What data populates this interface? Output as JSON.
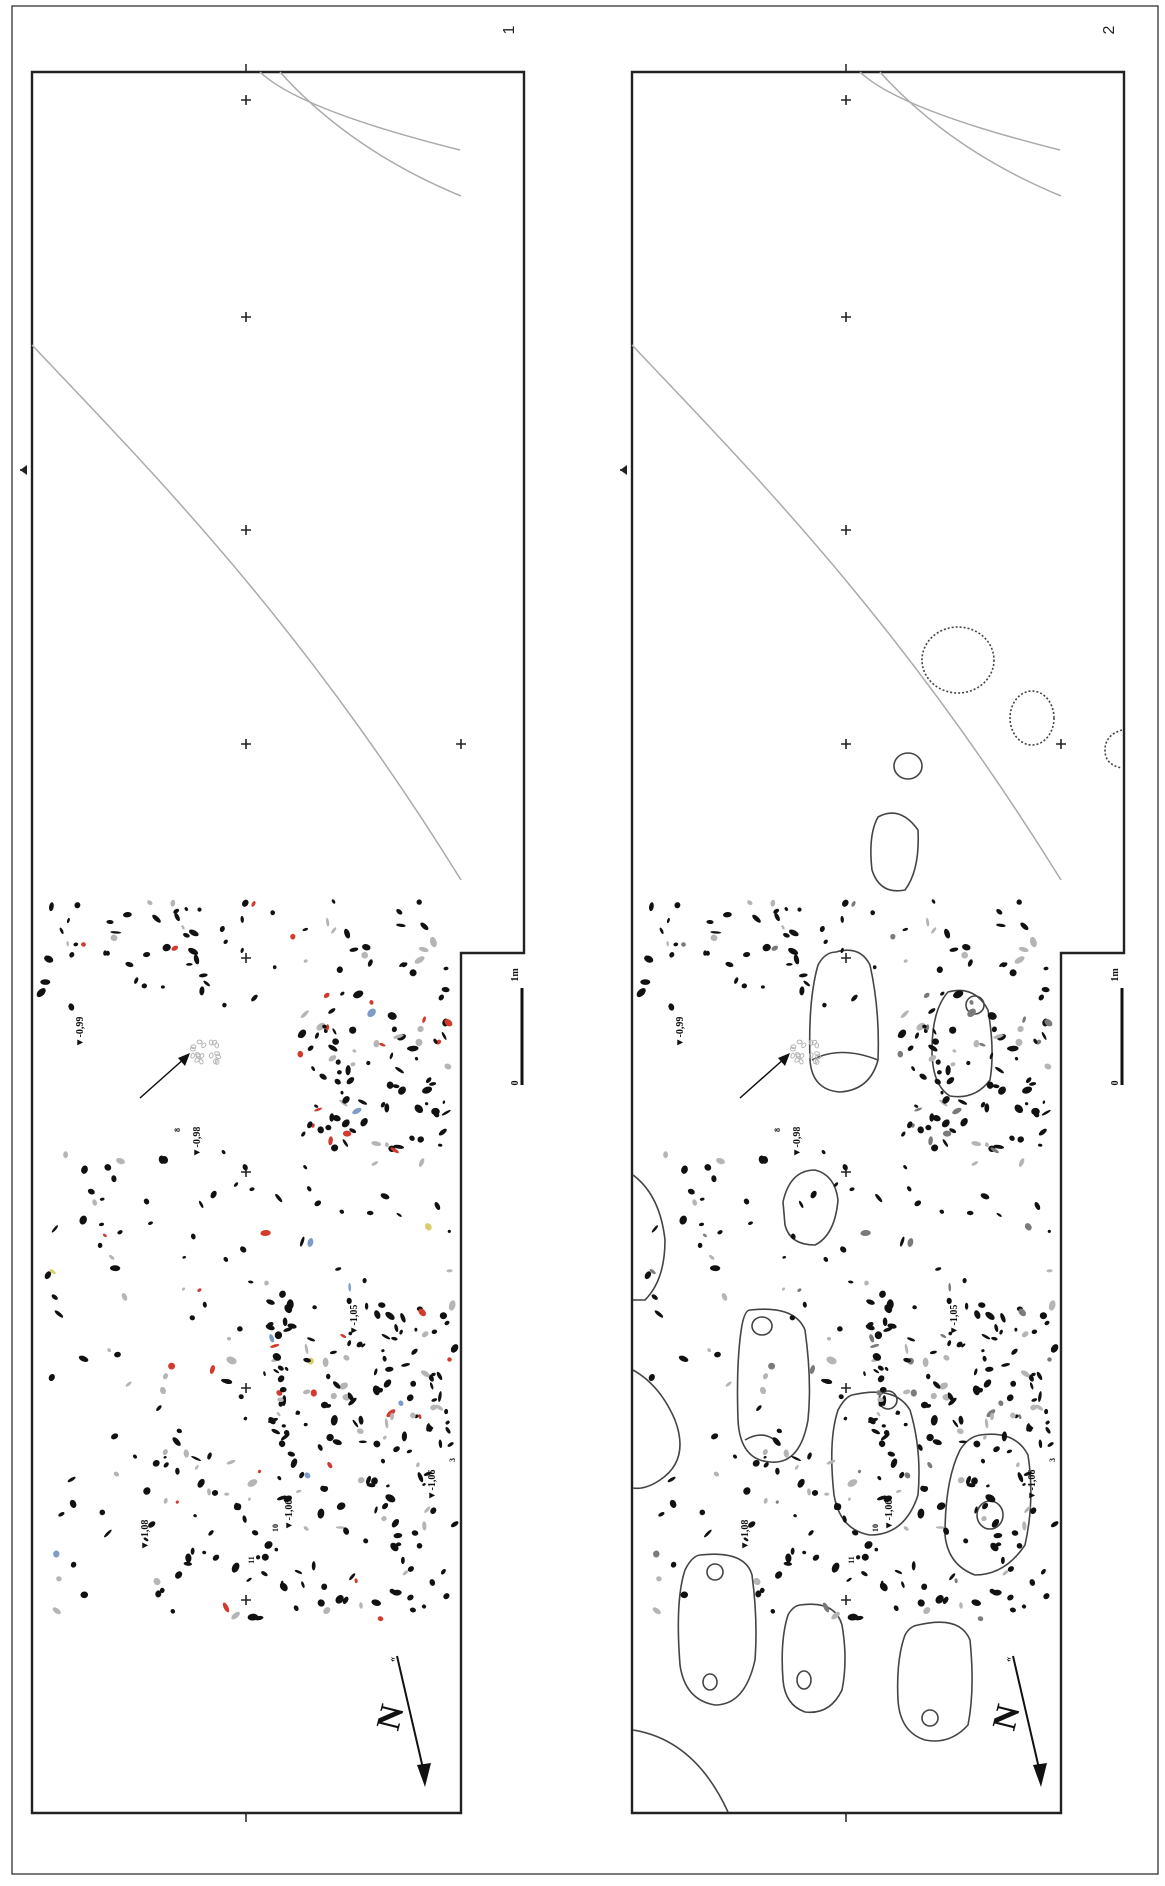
{
  "panels": [
    {
      "label": "1"
    },
    {
      "label": "2"
    }
  ],
  "elevations": [
    "▼-0,99",
    "▼-0,98",
    "▼-1,05",
    "▼-1,06",
    "▼-1,06",
    "▼-1,08"
  ],
  "small_numbers": [
    "8",
    "10",
    "11",
    "3"
  ],
  "scale_bar": {
    "zero": "0",
    "length": "1m"
  },
  "north_arrow": {
    "letter": "N"
  },
  "colors": {
    "frame": "#222222",
    "outline_grey": "#aaaaaa",
    "stone_black": "#111111",
    "stone_grey": "#b5b5b5",
    "stone_red": "#d23a2e",
    "stone_blue": "#7e9cc8",
    "stone_yellow": "#d8cf6a"
  }
}
